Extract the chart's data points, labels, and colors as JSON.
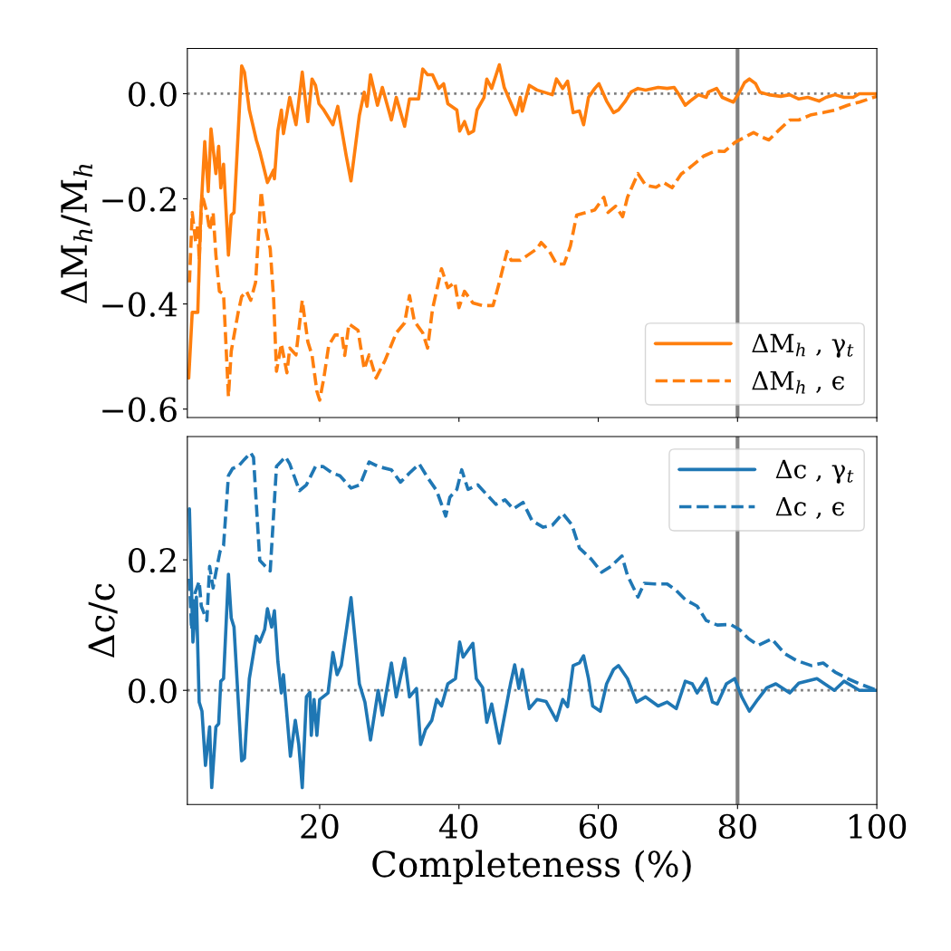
{
  "chart_data": [
    {
      "type": "line",
      "ylabel": "ΔM$_{h}$/M$_{h}$",
      "xlim": [
        1,
        100
      ],
      "ylim": [
        -0.616,
        0.086
      ],
      "xticks": [
        20,
        40,
        60,
        80,
        100
      ],
      "yticks": [
        {
          "value": 0.0,
          "label": "0.0"
        },
        {
          "value": -0.2,
          "label": "−0.2"
        },
        {
          "value": -0.4,
          "label": "−0.4"
        },
        {
          "value": -0.6,
          "label": "−0.6"
        }
      ],
      "tick_labels": "y",
      "grid": false,
      "legend": "bottom right",
      "ref_lines": [
        {
          "axis": "y",
          "value": 0,
          "color": "#808080",
          "line_style": "dotted"
        },
        {
          "axis": "x",
          "value": 80,
          "color": "#808080",
          "line_style": "solid"
        }
      ],
      "series": [
        {
          "name": "ΔM$_{h}$ , γ$_{t}$",
          "color": "#ff7f0e",
          "line_style": "solid",
          "x": [
            1.2,
            1.7,
            2.5,
            2.9,
            3.5,
            4.0,
            4.4,
            5.1,
            5.5,
            5.8,
            6.2,
            6.9,
            7.3,
            7.7,
            8.8,
            9.2,
            9.9,
            10.9,
            11.4,
            12.5,
            13.4,
            13.5,
            14.0,
            14.5,
            14.8,
            15.7,
            16.6,
            17.5,
            18.3,
            18.9,
            19.4,
            19.9,
            20.6,
            21.9,
            22.6,
            23.8,
            24.5,
            25.7,
            26.4,
            26.8,
            27.3,
            28.3,
            29.0,
            30.3,
            31.0,
            32.2,
            32.9,
            34.2,
            34.8,
            35.5,
            36.2,
            37.1,
            37.8,
            38.4,
            39.7,
            40.1,
            40.8,
            41.4,
            42.1,
            42.6,
            43.6,
            44.0,
            44.7,
            45.8,
            46.5,
            47.5,
            48.2,
            48.8,
            49.1,
            50.1,
            51.2,
            53.4,
            54.0,
            54.9,
            55.6,
            56.4,
            57.3,
            57.9,
            58.6,
            59.5,
            60.1,
            61.2,
            62.2,
            62.9,
            63.8,
            64.7,
            65.7,
            66.8,
            68.6,
            69.9,
            70.9,
            71.6,
            72.5,
            73.2,
            74.4,
            75.5,
            75.8,
            77.0,
            77.8,
            79.4,
            80.3,
            81.0,
            81.7,
            82.6,
            83.2,
            84.5,
            86.2,
            87.5,
            88.8,
            90.1,
            91.7,
            92.7,
            94.0,
            95.3,
            96.6,
            97.5,
            100
          ],
          "values": [
            -0.541,
            -0.416,
            -0.416,
            -0.238,
            -0.091,
            -0.186,
            -0.067,
            -0.152,
            -0.1,
            -0.179,
            -0.134,
            -0.307,
            -0.231,
            -0.226,
            0.053,
            0.041,
            -0.031,
            -0.088,
            -0.11,
            -0.169,
            -0.145,
            -0.162,
            -0.071,
            -0.031,
            -0.076,
            -0.007,
            -0.059,
            0.041,
            -0.053,
            0.028,
            0.016,
            -0.019,
            -0.031,
            -0.059,
            -0.024,
            -0.117,
            -0.166,
            -0.041,
            0.003,
            -0.024,
            0.036,
            -0.022,
            0.012,
            -0.05,
            -0.007,
            -0.062,
            -0.01,
            -0.01,
            0.047,
            0.036,
            0.036,
            0.01,
            0.019,
            -0.019,
            -0.031,
            -0.071,
            -0.053,
            -0.076,
            -0.071,
            -0.031,
            -0.007,
            0.028,
            0.01,
            0.055,
            0.012,
            -0.019,
            -0.04,
            -0.007,
            -0.033,
            0.016,
            0.007,
            -0.002,
            0.028,
            0.01,
            0.024,
            -0.036,
            -0.033,
            -0.059,
            -0.007,
            0.01,
            0.019,
            -0.014,
            -0.036,
            -0.031,
            -0.016,
            0.003,
            0.01,
            0.007,
            0.012,
            0.01,
            0.012,
            -0.002,
            -0.022,
            -0.014,
            -0.002,
            -0.007,
            0.003,
            0.01,
            -0.007,
            -0.016,
            0.003,
            0.021,
            0.028,
            0.019,
            0.003,
            -0.002,
            -0.005,
            -0.002,
            -0.01,
            -0.007,
            -0.014,
            -0.007,
            -0.002,
            -0.007,
            -0.007,
            0.0,
            0.0
          ]
        },
        {
          "name": "ΔM$_{h}$ , ϵ",
          "color": "#ff7f0e",
          "line_style": "dashed",
          "x": [
            1.3,
            1.7,
            2.2,
            2.5,
            2.7,
            3.1,
            3.8,
            4.2,
            4.7,
            5.1,
            5.6,
            6.2,
            6.9,
            7.3,
            8.3,
            8.8,
            9.5,
            10.1,
            10.8,
            11.6,
            12.2,
            12.9,
            13.4,
            13.8,
            14.5,
            15.3,
            15.7,
            16.6,
            17.5,
            18.3,
            18.9,
            19.6,
            20.0,
            20.6,
            21.3,
            22.2,
            23.2,
            23.6,
            24.2,
            25.5,
            26.4,
            27.1,
            28.1,
            29.4,
            31.0,
            32.2,
            32.9,
            33.6,
            34.8,
            35.5,
            36.2,
            37.5,
            38.4,
            39.4,
            40.0,
            40.8,
            42.0,
            43.4,
            44.9,
            45.8,
            46.9,
            47.5,
            48.8,
            49.9,
            51.2,
            51.8,
            53.0,
            54.0,
            55.1,
            56.0,
            56.9,
            58.3,
            59.5,
            60.8,
            61.4,
            62.5,
            63.5,
            64.2,
            65.7,
            66.8,
            68.3,
            69.4,
            70.6,
            71.9,
            73.2,
            75.1,
            76.8,
            78.1,
            79.6,
            81.0,
            82.3,
            83.6,
            84.5,
            85.8,
            87.5,
            88.8,
            90.6,
            92.3,
            94.0,
            95.8,
            97.5,
            100
          ],
          "values": [
            -0.359,
            -0.226,
            -0.283,
            -0.248,
            -0.317,
            -0.191,
            -0.226,
            -0.26,
            -0.226,
            -0.307,
            -0.376,
            -0.381,
            -0.576,
            -0.49,
            -0.416,
            -0.386,
            -0.376,
            -0.393,
            -0.359,
            -0.186,
            -0.255,
            -0.295,
            -0.393,
            -0.528,
            -0.476,
            -0.531,
            -0.484,
            -0.497,
            -0.393,
            -0.472,
            -0.497,
            -0.566,
            -0.583,
            -0.541,
            -0.479,
            -0.459,
            -0.459,
            -0.498,
            -0.438,
            -0.45,
            -0.524,
            -0.497,
            -0.541,
            -0.507,
            -0.455,
            -0.436,
            -0.384,
            -0.433,
            -0.455,
            -0.484,
            -0.41,
            -0.333,
            -0.369,
            -0.359,
            -0.407,
            -0.376,
            -0.398,
            -0.403,
            -0.403,
            -0.359,
            -0.3,
            -0.317,
            -0.317,
            -0.307,
            -0.295,
            -0.283,
            -0.3,
            -0.324,
            -0.324,
            -0.29,
            -0.231,
            -0.226,
            -0.221,
            -0.197,
            -0.226,
            -0.214,
            -0.234,
            -0.197,
            -0.152,
            -0.174,
            -0.178,
            -0.169,
            -0.179,
            -0.153,
            -0.14,
            -0.119,
            -0.109,
            -0.11,
            -0.093,
            -0.083,
            -0.074,
            -0.083,
            -0.088,
            -0.071,
            -0.05,
            -0.05,
            -0.04,
            -0.036,
            -0.031,
            -0.022,
            -0.016,
            -0.005
          ]
        }
      ]
    },
    {
      "type": "line",
      "xlabel": "Completeness (%)",
      "ylabel": "Δc/c",
      "xlim": [
        1,
        100
      ],
      "ylim": [
        -0.175,
        0.389
      ],
      "xticks": [
        20,
        40,
        60,
        80,
        100
      ],
      "yticks": [
        {
          "value": 0.0,
          "label": "0.0"
        },
        {
          "value": 0.2,
          "label": "0.2"
        }
      ],
      "grid": false,
      "legend": "top right",
      "ref_lines": [
        {
          "axis": "y",
          "value": 0,
          "color": "#808080",
          "line_style": "dotted"
        },
        {
          "axis": "x",
          "value": 80,
          "color": "#808080",
          "line_style": "solid"
        }
      ],
      "series": [
        {
          "name": "Δc , γ$_{t}$",
          "color": "#1f77b4",
          "line_style": "solid",
          "x": [
            1.3,
            1.6,
            1.8,
            2.3,
            2.7,
            3.1,
            3.6,
            4.2,
            4.5,
            5.1,
            5.5,
            5.8,
            6.2,
            6.9,
            7.3,
            7.7,
            8.8,
            9.2,
            9.9,
            10.9,
            11.4,
            12.1,
            12.5,
            13.1,
            13.5,
            14.0,
            14.5,
            14.8,
            15.8,
            16.5,
            17.0,
            17.5,
            18.1,
            18.6,
            18.8,
            19.2,
            19.6,
            20.0,
            21.2,
            21.9,
            22.5,
            23.1,
            23.9,
            24.5,
            25.7,
            26.5,
            27.3,
            28.4,
            29.0,
            30.3,
            31.0,
            32.2,
            32.9,
            33.9,
            34.5,
            35.2,
            36.1,
            36.8,
            37.5,
            38.4,
            39.5,
            40.1,
            40.6,
            42.0,
            42.5,
            43.4,
            44.0,
            44.7,
            45.8,
            47.4,
            48.0,
            48.6,
            49.1,
            50.1,
            51.2,
            52.5,
            54.0,
            54.9,
            55.6,
            56.4,
            57.3,
            57.9,
            58.6,
            59.2,
            60.3,
            61.2,
            62.2,
            62.9,
            64.2,
            65.5,
            66.8,
            68.6,
            69.9,
            71.2,
            72.5,
            73.5,
            74.2,
            75.5,
            76.4,
            77.1,
            78.4,
            79.6,
            80.6,
            81.7,
            82.9,
            84.2,
            85.5,
            87.5,
            88.8,
            91.4,
            93.9,
            95.3,
            97.5,
            100
          ],
          "values": [
            0.278,
            0.157,
            0.074,
            0.143,
            -0.018,
            -0.032,
            -0.115,
            -0.056,
            -0.149,
            -0.056,
            -0.051,
            0.014,
            0.018,
            0.178,
            0.111,
            0.097,
            -0.108,
            -0.104,
            0.018,
            0.083,
            0.074,
            0.093,
            0.125,
            0.097,
            0.122,
            0.044,
            -0.004,
            0.024,
            -0.101,
            -0.046,
            -0.083,
            -0.149,
            -0.01,
            -0.003,
            -0.069,
            -0.014,
            -0.069,
            -0.014,
            -0.004,
            0.058,
            0.024,
            0.038,
            0.097,
            0.142,
            0.01,
            -0.018,
            -0.076,
            0.0,
            -0.038,
            0.042,
            -0.01,
            0.049,
            -0.01,
            0.003,
            -0.083,
            -0.06,
            -0.046,
            -0.014,
            -0.024,
            0.01,
            0.018,
            0.074,
            0.051,
            0.072,
            0.018,
            0.004,
            -0.049,
            -0.021,
            -0.081,
            0.01,
            0.039,
            0.003,
            0.032,
            -0.028,
            -0.014,
            -0.017,
            -0.046,
            -0.014,
            -0.025,
            0.038,
            0.042,
            0.053,
            0.018,
            -0.024,
            -0.032,
            0.01,
            0.032,
            0.038,
            0.018,
            -0.018,
            -0.01,
            -0.024,
            -0.018,
            -0.028,
            0.014,
            0.01,
            -0.004,
            0.018,
            -0.018,
            -0.021,
            0.01,
            0.018,
            -0.01,
            -0.032,
            -0.014,
            0.004,
            0.01,
            -0.004,
            0.011,
            0.018,
            0.0,
            0.014,
            0.0,
            0.0
          ]
        },
        {
          "name": "Δc , ϵ",
          "color": "#1f77b4",
          "line_style": "dashed",
          "x": [
            1.3,
            1.6,
            2.1,
            2.7,
            3.0,
            3.8,
            4.2,
            4.7,
            5.1,
            5.7,
            6.2,
            6.9,
            7.5,
            8.3,
            9.2,
            10.1,
            10.5,
            11.4,
            12.2,
            12.9,
            13.8,
            15.1,
            15.7,
            17.1,
            18.1,
            19.4,
            20.5,
            21.8,
            22.9,
            24.5,
            25.8,
            27.1,
            28.4,
            30.3,
            31.6,
            32.9,
            34.3,
            35.5,
            36.8,
            38.1,
            38.7,
            39.7,
            40.4,
            41.3,
            42.7,
            43.9,
            45.3,
            46.6,
            47.8,
            49.2,
            50.5,
            52.1,
            53.4,
            54.9,
            56.2,
            57.3,
            59.0,
            60.5,
            61.8,
            63.4,
            64.2,
            65.7,
            66.6,
            68.1,
            69.9,
            71.2,
            72.5,
            74.2,
            75.5,
            77.1,
            79.0,
            80.3,
            81.6,
            83.0,
            84.9,
            86.8,
            88.4,
            90.6,
            92.3,
            94.0,
            95.8,
            97.5,
            100
          ],
          "values": [
            0.171,
            0.093,
            0.149,
            0.167,
            0.129,
            0.107,
            0.19,
            0.157,
            0.181,
            0.213,
            0.222,
            0.329,
            0.34,
            0.343,
            0.354,
            0.364,
            0.357,
            0.199,
            0.19,
            0.183,
            0.343,
            0.358,
            0.347,
            0.306,
            0.315,
            0.343,
            0.343,
            0.333,
            0.329,
            0.31,
            0.315,
            0.35,
            0.343,
            0.338,
            0.319,
            0.333,
            0.347,
            0.326,
            0.306,
            0.267,
            0.296,
            0.308,
            0.338,
            0.308,
            0.315,
            0.301,
            0.285,
            0.292,
            0.278,
            0.288,
            0.26,
            0.25,
            0.253,
            0.271,
            0.254,
            0.218,
            0.201,
            0.181,
            0.19,
            0.206,
            0.176,
            0.143,
            0.164,
            0.163,
            0.163,
            0.153,
            0.139,
            0.129,
            0.107,
            0.1,
            0.101,
            0.093,
            0.079,
            0.069,
            0.079,
            0.056,
            0.046,
            0.038,
            0.042,
            0.028,
            0.018,
            0.01,
            0.0
          ]
        }
      ]
    }
  ]
}
